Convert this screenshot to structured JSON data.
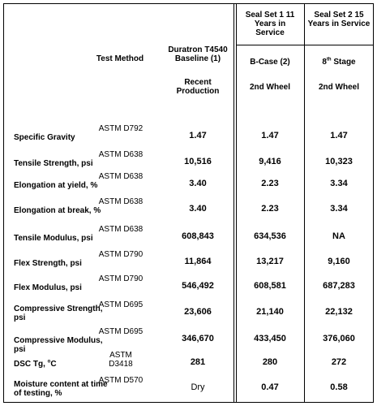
{
  "headers": {
    "test_method": "Test Method",
    "duratron": "Duratron T4540 Baseline (1)",
    "recent_production": "Recent Production",
    "seal1": "Seal Set 1 11 Years in Service",
    "seal1_sub": "B-Case (2)",
    "seal1_wheel": "2nd Wheel",
    "seal2": "Seal Set 2 15 Years in Service",
    "seal2_sub_base": "8",
    "seal2_sub_sup": "th",
    "seal2_sub_rest": " Stage",
    "seal2_wheel": "2nd Wheel"
  },
  "rows": [
    {
      "property": "Specific Gravity",
      "method": "ASTM D792",
      "baseline": "1.47",
      "seal1": "1.47",
      "seal2": "1.47"
    },
    {
      "property": "Tensile Strength, psi",
      "method": "ASTM D638",
      "baseline": "10,516",
      "seal1": "9,416",
      "seal2": "10,323"
    },
    {
      "property": "Elongation at yield, %",
      "method": "ASTM D638",
      "baseline": "3.40",
      "seal1": "2.23",
      "seal2": "3.34"
    },
    {
      "property": "Elongation at break, %",
      "method": "ASTM D638",
      "baseline": "3.40",
      "seal1": "2.23",
      "seal2": "3.34"
    },
    {
      "property": "Tensile Modulus, psi",
      "method": "ASTM D638",
      "baseline": "608,843",
      "seal1": "634,536",
      "seal2": "NA"
    },
    {
      "property": "Flex Strength, psi",
      "method": "ASTM D790",
      "baseline": "11,864",
      "seal1": "13,217",
      "seal2": "9,160"
    },
    {
      "property": "Flex Modulus, psi",
      "method": "ASTM D790",
      "baseline": "546,492",
      "seal1": "608,581",
      "seal2": "687,283"
    },
    {
      "property": "Compressive Strength, psi",
      "method": "ASTM D695",
      "baseline": "23,606",
      "seal1": "21,140",
      "seal2": "22,132"
    },
    {
      "property": "Compressive Modulus, psi",
      "method": "ASTM D695",
      "baseline": "346,670",
      "seal1": "433,450",
      "seal2": "376,060"
    },
    {
      "property_base": "DSC Tg, ",
      "property_sup": "o",
      "property_rest": "C",
      "method": "ASTM D3418",
      "baseline": "281",
      "seal1": "280",
      "seal2": "272"
    },
    {
      "property": "Moisture content at time of testing, %",
      "method": "ASTM D570",
      "baseline": "Dry",
      "seal1": "0.47",
      "seal2": "0.58"
    }
  ]
}
